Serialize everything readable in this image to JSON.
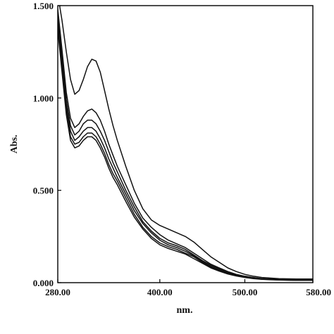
{
  "chart_data": {
    "type": "line",
    "xlabel": "nm.",
    "ylabel": "Abs.",
    "xlim": [
      280,
      580
    ],
    "ylim": [
      0,
      1.5
    ],
    "x_ticks": [
      280,
      400,
      500,
      580
    ],
    "x_tick_labels": [
      "280.00",
      "400.00",
      "500.00",
      "580.00"
    ],
    "y_ticks": [
      0,
      0.5,
      1.0,
      1.5
    ],
    "y_tick_labels": [
      "0.000",
      "0.500",
      "1.000",
      "1.500"
    ],
    "grid": false,
    "legend": "none",
    "x": [
      280,
      285,
      290,
      295,
      300,
      305,
      310,
      315,
      320,
      325,
      330,
      335,
      340,
      345,
      350,
      360,
      370,
      380,
      390,
      400,
      410,
      420,
      430,
      440,
      450,
      460,
      470,
      480,
      490,
      500,
      510,
      520,
      540,
      560,
      580
    ],
    "series": [
      {
        "values": [
          1.56,
          1.42,
          1.25,
          1.1,
          1.02,
          1.04,
          1.1,
          1.17,
          1.21,
          1.2,
          1.14,
          1.04,
          0.94,
          0.85,
          0.77,
          0.63,
          0.5,
          0.4,
          0.34,
          0.31,
          0.29,
          0.27,
          0.25,
          0.22,
          0.18,
          0.14,
          0.11,
          0.08,
          0.06,
          0.045,
          0.035,
          0.028,
          0.022,
          0.02,
          0.02
        ]
      },
      {
        "values": [
          1.48,
          1.26,
          1.03,
          0.89,
          0.84,
          0.86,
          0.9,
          0.93,
          0.94,
          0.92,
          0.88,
          0.82,
          0.75,
          0.69,
          0.63,
          0.53,
          0.43,
          0.35,
          0.3,
          0.26,
          0.23,
          0.21,
          0.19,
          0.16,
          0.13,
          0.1,
          0.08,
          0.06,
          0.045,
          0.035,
          0.028,
          0.022,
          0.018,
          0.016,
          0.015
        ]
      },
      {
        "values": [
          1.44,
          1.22,
          0.99,
          0.85,
          0.8,
          0.82,
          0.86,
          0.88,
          0.88,
          0.86,
          0.82,
          0.77,
          0.71,
          0.65,
          0.6,
          0.5,
          0.41,
          0.33,
          0.28,
          0.24,
          0.215,
          0.2,
          0.18,
          0.15,
          0.12,
          0.095,
          0.075,
          0.055,
          0.042,
          0.033,
          0.026,
          0.021,
          0.017,
          0.015,
          0.015
        ]
      },
      {
        "values": [
          1.41,
          1.19,
          0.96,
          0.82,
          0.77,
          0.79,
          0.82,
          0.84,
          0.84,
          0.82,
          0.78,
          0.73,
          0.67,
          0.62,
          0.57,
          0.48,
          0.39,
          0.32,
          0.27,
          0.23,
          0.205,
          0.19,
          0.17,
          0.145,
          0.115,
          0.09,
          0.07,
          0.052,
          0.04,
          0.031,
          0.025,
          0.02,
          0.016,
          0.014,
          0.014
        ]
      },
      {
        "values": [
          1.39,
          1.16,
          0.93,
          0.79,
          0.75,
          0.76,
          0.79,
          0.81,
          0.81,
          0.79,
          0.75,
          0.7,
          0.64,
          0.59,
          0.55,
          0.46,
          0.37,
          0.3,
          0.25,
          0.215,
          0.195,
          0.18,
          0.16,
          0.14,
          0.11,
          0.085,
          0.065,
          0.05,
          0.038,
          0.03,
          0.024,
          0.019,
          0.015,
          0.013,
          0.013
        ]
      },
      {
        "values": [
          1.37,
          1.14,
          0.91,
          0.77,
          0.73,
          0.74,
          0.77,
          0.79,
          0.79,
          0.77,
          0.73,
          0.68,
          0.62,
          0.57,
          0.53,
          0.44,
          0.355,
          0.29,
          0.24,
          0.205,
          0.185,
          0.17,
          0.155,
          0.13,
          0.105,
          0.08,
          0.062,
          0.047,
          0.036,
          0.028,
          0.022,
          0.018,
          0.014,
          0.012,
          0.012
        ]
      }
    ]
  }
}
